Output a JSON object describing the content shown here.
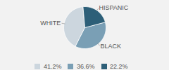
{
  "chart_data": {
    "type": "pie",
    "categories": [
      "WHITE",
      "BLACK",
      "HISPANIC"
    ],
    "values": [
      41.2,
      36.6,
      22.2
    ],
    "value_labels": [
      "41.2%",
      "36.6%",
      "22.2%"
    ],
    "colors": [
      "#ccd6de",
      "#7a9fb5",
      "#2d5f78"
    ],
    "legend": "bottom"
  }
}
